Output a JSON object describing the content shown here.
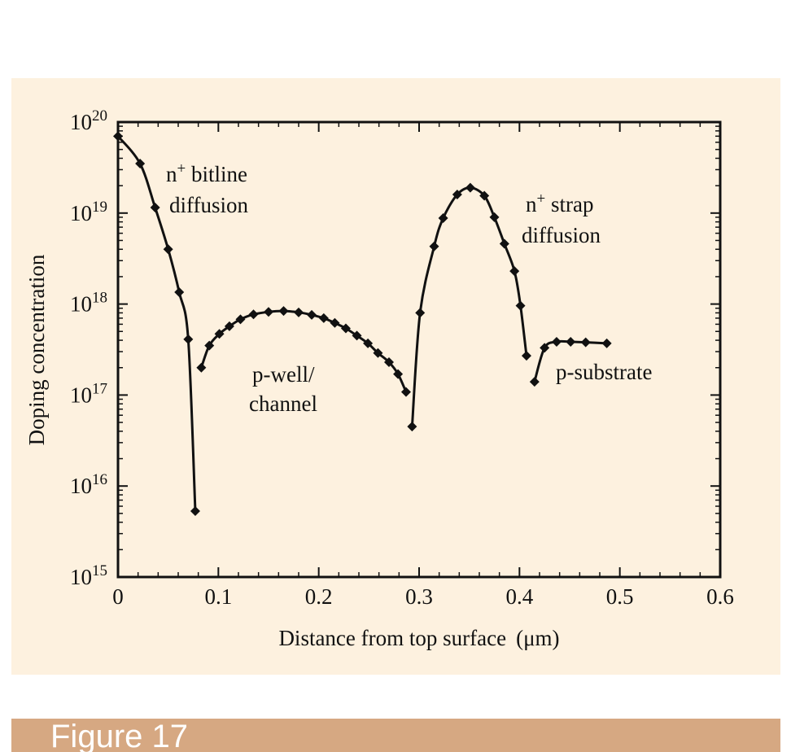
{
  "chart_data": {
    "type": "line",
    "xlabel": "Distance from top surface",
    "xlabel_unit": "(μm)",
    "ylabel": "Doping concentration",
    "xlim": [
      0,
      0.6
    ],
    "ylim": [
      1000000000000000.0,
      1e+20
    ],
    "y_scale": "log",
    "x_ticks": [
      "0",
      "0.1",
      "0.2",
      "0.3",
      "0.4",
      "0.5",
      "0.6"
    ],
    "y_ticks": [
      {
        "base": "10",
        "exp": "15"
      },
      {
        "base": "10",
        "exp": "16"
      },
      {
        "base": "10",
        "exp": "17"
      },
      {
        "base": "10",
        "exp": "18"
      },
      {
        "base": "10",
        "exp": "19"
      },
      {
        "base": "10",
        "exp": "20"
      }
    ],
    "grid": false,
    "series": [
      {
        "points": [
          [
            0.0,
            7e+19
          ],
          [
            0.022,
            3.5e+19
          ],
          [
            0.037,
            1.15e+19
          ],
          [
            0.05,
            4e+18
          ],
          [
            0.061,
            1.35e+18
          ],
          [
            0.07,
            4.1e+17
          ],
          [
            0.077,
            5300000000000000.0
          ]
        ]
      },
      {
        "points": [
          [
            0.083,
            2e+17
          ],
          [
            0.091,
            3.5e+17
          ],
          [
            0.101,
            4.7e+17
          ],
          [
            0.111,
            5.7e+17
          ],
          [
            0.122,
            6.8e+17
          ],
          [
            0.135,
            7.7e+17
          ],
          [
            0.15,
            8.2e+17
          ],
          [
            0.165,
            8.4e+17
          ],
          [
            0.18,
            8.1e+17
          ],
          [
            0.193,
            7.6e+17
          ],
          [
            0.205,
            7e+17
          ],
          [
            0.216,
            6.2e+17
          ],
          [
            0.227,
            5.4e+17
          ],
          [
            0.238,
            4.5e+17
          ],
          [
            0.249,
            3.7e+17
          ],
          [
            0.259,
            2.9e+17
          ],
          [
            0.27,
            2.3e+17
          ],
          [
            0.279,
            1.7e+17
          ],
          [
            0.287,
            1.08e+17
          ]
        ]
      },
      {
        "points": [
          [
            0.293,
            4.5e+16
          ],
          [
            0.301,
            8e+17
          ],
          [
            0.315,
            4.3e+18
          ],
          [
            0.324,
            8.8e+18
          ],
          [
            0.338,
            1.6e+19
          ],
          [
            0.351,
            1.9e+19
          ],
          [
            0.365,
            1.55e+19
          ],
          [
            0.375,
            9e+18
          ],
          [
            0.385,
            4.6e+18
          ],
          [
            0.395,
            2.3e+18
          ],
          [
            0.401,
            9.6e+17
          ],
          [
            0.407,
            2.7e+17
          ]
        ]
      },
      {
        "points": [
          [
            0.415,
            1.4e+17
          ],
          [
            0.425,
            3.3e+17
          ],
          [
            0.437,
            3.85e+17
          ],
          [
            0.451,
            3.85e+17
          ],
          [
            0.466,
            3.8e+17
          ],
          [
            0.487,
            3.7e+17
          ]
        ]
      }
    ],
    "annotations": [
      {
        "id": "bitline",
        "line1": "n",
        "sup": "+",
        "line1_rest": " bitline",
        "line2": "diffusion"
      },
      {
        "id": "pwell",
        "line1": "p-well/",
        "line2": "channel"
      },
      {
        "id": "strap",
        "line1": "n",
        "sup": "+",
        "line1_rest": " strap",
        "line2": "diffusion"
      },
      {
        "id": "substrate",
        "line1": "p-substrate"
      }
    ],
    "colors": {
      "panel": "#fdf1df",
      "line": "#111111",
      "caption_bar": "#d6a882"
    }
  },
  "caption": "Figure 17"
}
